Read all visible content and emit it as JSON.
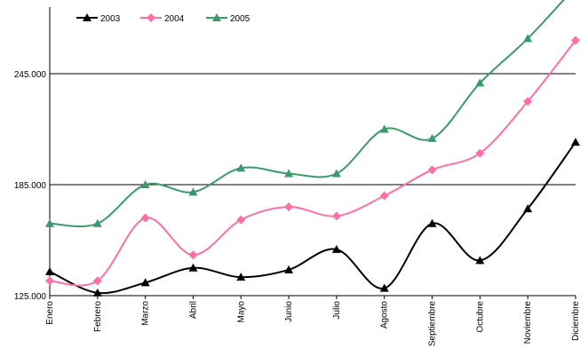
{
  "chart_data": {
    "type": "line",
    "title": "",
    "xlabel": "",
    "ylabel": "",
    "categories": [
      "Enero",
      "Febrero",
      "Marzo",
      "Abril",
      "Mayo",
      "Junio",
      "Julio",
      "Agosto",
      "Septiembre",
      "Octubre",
      "Noviembre",
      "Diciembre"
    ],
    "y_ticks": [
      125000,
      185000,
      245000
    ],
    "y_tick_labels": [
      "125.000",
      "185.000",
      "245.000"
    ],
    "ylim": [
      125000,
      280000
    ],
    "grid": "horizontal",
    "legend_position": "top-left",
    "series": [
      {
        "name": "2003",
        "color": "#000000",
        "marker": "triangle",
        "values": [
          138000,
          126500,
          132000,
          140000,
          135000,
          139000,
          150000,
          129000,
          164000,
          144000,
          172000,
          208000
        ]
      },
      {
        "name": "2004",
        "color": "#ff6fa5",
        "marker": "diamond",
        "values": [
          133000,
          133000,
          167000,
          147000,
          166000,
          173000,
          168000,
          179000,
          193000,
          202000,
          230000,
          263000
        ]
      },
      {
        "name": "2005",
        "color": "#3a9a6a",
        "marker": "triangle",
        "values": [
          164000,
          164000,
          185000,
          181000,
          194000,
          191000,
          191000,
          215000,
          210000,
          240000,
          264000,
          292000
        ]
      }
    ]
  }
}
